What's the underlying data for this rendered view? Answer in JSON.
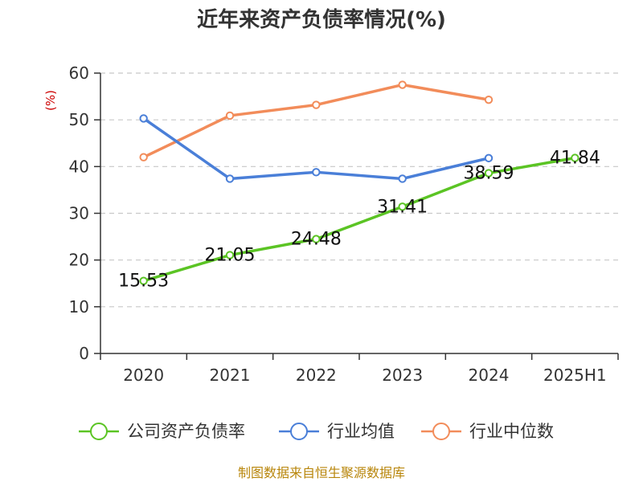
{
  "chart_data": {
    "type": "line",
    "title": "近年来资产负债率情况(%)",
    "ylabel": "(%)",
    "xlabel": "",
    "categories": [
      "2020",
      "2021",
      "2022",
      "2023",
      "2024",
      "2025H1"
    ],
    "ylim": [
      0,
      60
    ],
    "yticks": [
      "0",
      "10",
      "20",
      "30",
      "40",
      "50",
      "60"
    ],
    "grid": true,
    "legend_position": "bottom",
    "series": [
      {
        "name": "公司资产负债率",
        "color": "#5bc424",
        "values": [
          15.53,
          21.05,
          24.48,
          31.41,
          38.59,
          41.84
        ],
        "labels": [
          "15.53",
          "21.05",
          "24.48",
          "31.41",
          "38.59",
          "41.84"
        ]
      },
      {
        "name": "行业均值",
        "color": "#4a7fd8",
        "values": [
          50.3,
          37.4,
          38.8,
          37.4,
          41.8,
          null
        ]
      },
      {
        "name": "行业中位数",
        "color": "#f28c5a",
        "values": [
          42.0,
          50.9,
          53.2,
          57.5,
          54.3,
          null
        ]
      }
    ],
    "source": "制图数据来自恒生聚源数据库"
  }
}
